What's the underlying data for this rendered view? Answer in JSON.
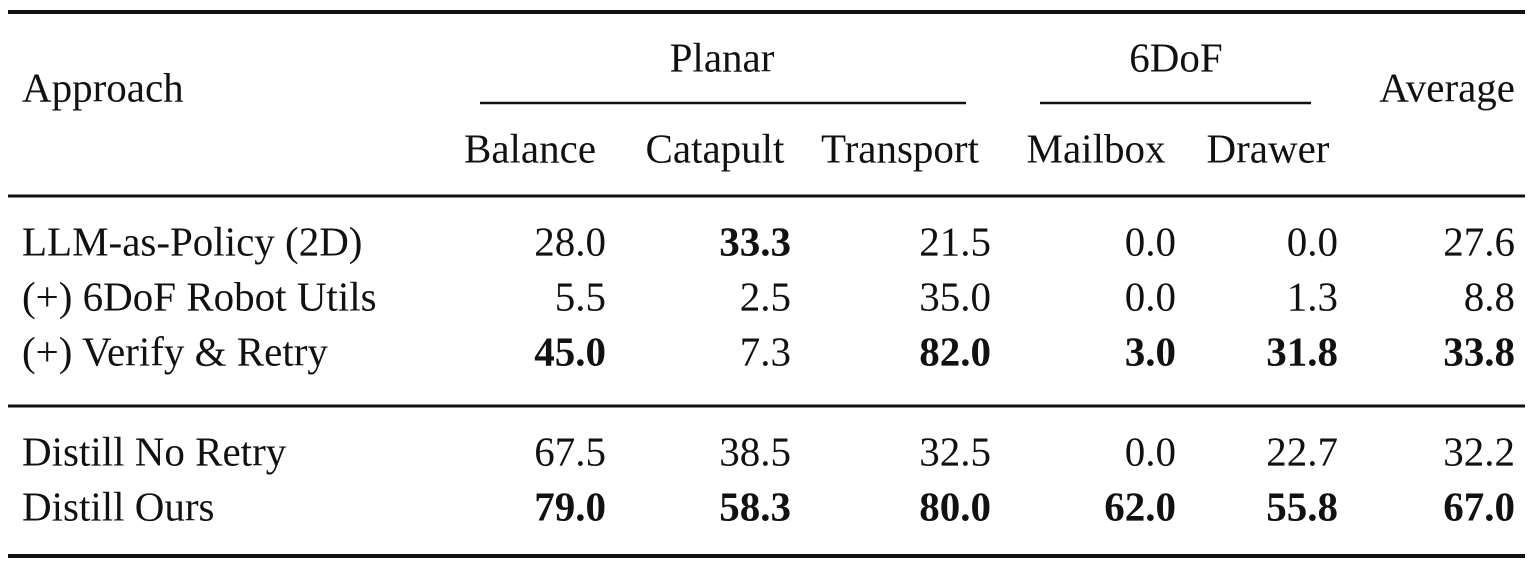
{
  "header": {
    "approach": "Approach",
    "groups": [
      "Planar",
      "6DoF"
    ],
    "average": "Average",
    "columns": [
      "Balance",
      "Catapult",
      "Transport",
      "Mailbox",
      "Drawer"
    ]
  },
  "table": {
    "sections": [
      {
        "rows": [
          {
            "label": "LLM-as-Policy (2D)",
            "cells": [
              "28.0",
              "33.3",
              "21.5",
              "0.0",
              "0.0",
              "27.6"
            ],
            "bold": [
              false,
              true,
              false,
              false,
              false,
              false
            ]
          },
          {
            "label": "(+) 6DoF Robot Utils",
            "cells": [
              "5.5",
              "2.5",
              "35.0",
              "0.0",
              "1.3",
              "8.8"
            ],
            "bold": [
              false,
              false,
              false,
              false,
              false,
              false
            ]
          },
          {
            "label": "(+) Verify & Retry",
            "cells": [
              "45.0",
              "7.3",
              "82.0",
              "3.0",
              "31.8",
              "33.8"
            ],
            "bold": [
              true,
              false,
              true,
              true,
              true,
              true
            ]
          }
        ]
      },
      {
        "rows": [
          {
            "label": "Distill No Retry",
            "cells": [
              "67.5",
              "38.5",
              "32.5",
              "0.0",
              "22.7",
              "32.2"
            ],
            "bold": [
              false,
              false,
              false,
              false,
              false,
              false
            ]
          },
          {
            "label": "Distill Ours",
            "cells": [
              "79.0",
              "58.3",
              "80.0",
              "62.0",
              "55.8",
              "67.0"
            ],
            "bold": [
              true,
              true,
              true,
              true,
              true,
              true
            ]
          }
        ]
      }
    ]
  }
}
